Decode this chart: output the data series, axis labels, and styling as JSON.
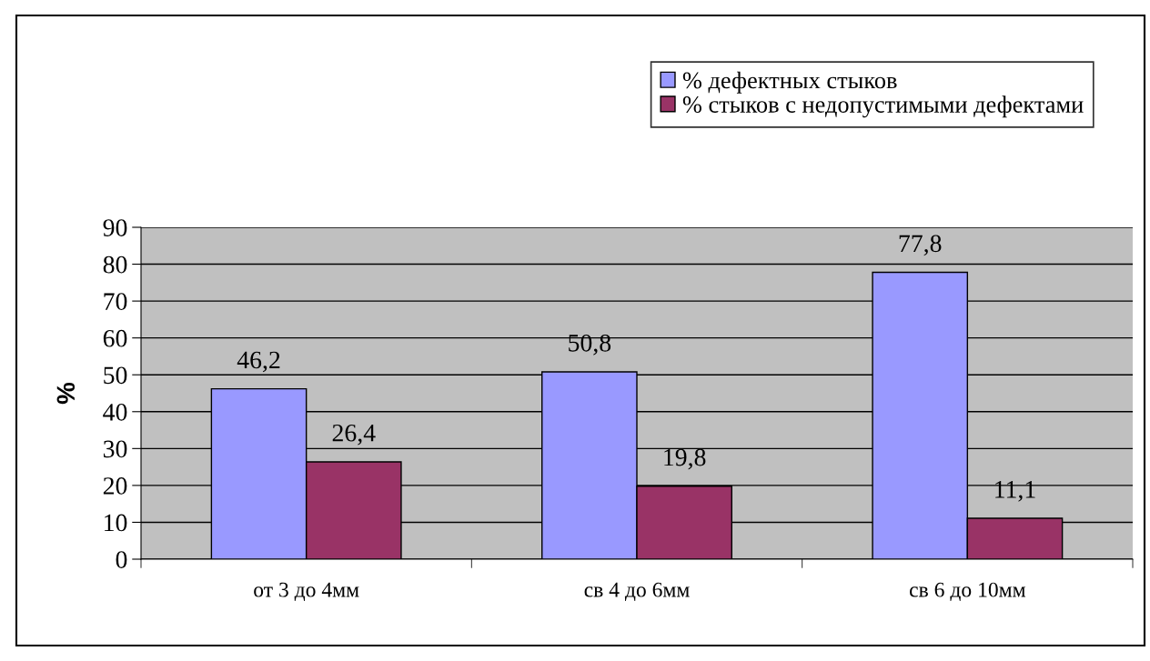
{
  "chart_data": {
    "type": "bar",
    "ylabel": "%",
    "categories": [
      "от 3 до 4мм",
      "св 4 до 6мм",
      "св 6 до 10мм"
    ],
    "series": [
      {
        "name": "% дефектных стыков",
        "color": "#9999ff",
        "values": [
          46.2,
          50.8,
          77.8
        ],
        "value_labels": [
          "46,2",
          "50,8",
          "77,8"
        ]
      },
      {
        "name": "% стыков с недопустимыми дефектами",
        "color": "#993366",
        "values": [
          26.4,
          19.8,
          11.1
        ],
        "value_labels": [
          "26,4",
          "19,8",
          "11,1"
        ]
      }
    ],
    "ylim": [
      0,
      90
    ],
    "yticks": [
      0,
      10,
      20,
      30,
      40,
      50,
      60,
      70,
      80,
      90
    ],
    "grid": "y",
    "legend": "top right"
  }
}
